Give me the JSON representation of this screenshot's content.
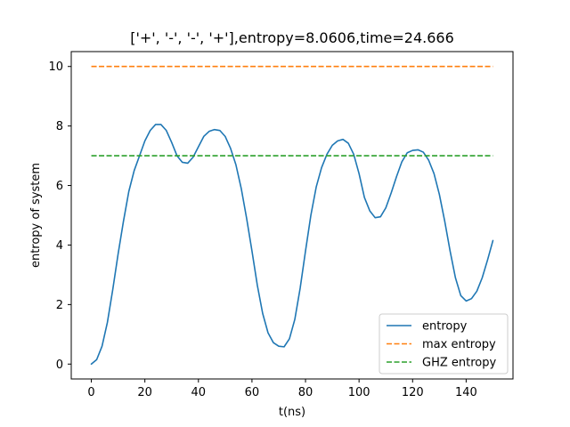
{
  "chart_data": {
    "type": "line",
    "title": "['+', '-', '-', '+'],entropy=8.0606,time=24.666",
    "xlabel": "t(ns)",
    "ylabel": "entropy of system",
    "xlim": [
      -7.5,
      157.5
    ],
    "ylim": [
      -0.5,
      10.5
    ],
    "xticks": [
      0,
      20,
      40,
      60,
      80,
      100,
      120,
      140
    ],
    "yticks": [
      0,
      2,
      4,
      6,
      8,
      10
    ],
    "grid": false,
    "legend_position": "lower-right",
    "series": [
      {
        "name": "entropy",
        "color": "#1f77b4",
        "style": "solid",
        "points": [
          [
            0,
            0.0
          ],
          [
            2,
            0.15
          ],
          [
            4,
            0.6
          ],
          [
            6,
            1.4
          ],
          [
            8,
            2.5
          ],
          [
            10,
            3.7
          ],
          [
            12,
            4.8
          ],
          [
            14,
            5.8
          ],
          [
            16,
            6.5
          ],
          [
            18,
            7.0
          ],
          [
            20,
            7.5
          ],
          [
            22,
            7.85
          ],
          [
            24,
            8.05
          ],
          [
            26,
            8.05
          ],
          [
            28,
            7.85
          ],
          [
            30,
            7.45
          ],
          [
            32,
            7.0
          ],
          [
            34,
            6.78
          ],
          [
            36,
            6.75
          ],
          [
            38,
            6.95
          ],
          [
            40,
            7.3
          ],
          [
            42,
            7.65
          ],
          [
            44,
            7.82
          ],
          [
            46,
            7.88
          ],
          [
            48,
            7.85
          ],
          [
            50,
            7.65
          ],
          [
            52,
            7.25
          ],
          [
            54,
            6.7
          ],
          [
            56,
            5.9
          ],
          [
            58,
            4.9
          ],
          [
            60,
            3.8
          ],
          [
            62,
            2.65
          ],
          [
            64,
            1.7
          ],
          [
            66,
            1.05
          ],
          [
            68,
            0.72
          ],
          [
            70,
            0.6
          ],
          [
            72,
            0.58
          ],
          [
            74,
            0.85
          ],
          [
            76,
            1.5
          ],
          [
            78,
            2.55
          ],
          [
            80,
            3.8
          ],
          [
            82,
            5.0
          ],
          [
            84,
            5.95
          ],
          [
            86,
            6.6
          ],
          [
            88,
            7.05
          ],
          [
            90,
            7.35
          ],
          [
            92,
            7.5
          ],
          [
            94,
            7.55
          ],
          [
            96,
            7.42
          ],
          [
            98,
            7.05
          ],
          [
            100,
            6.4
          ],
          [
            102,
            5.6
          ],
          [
            104,
            5.15
          ],
          [
            106,
            4.92
          ],
          [
            108,
            4.95
          ],
          [
            110,
            5.25
          ],
          [
            112,
            5.75
          ],
          [
            114,
            6.3
          ],
          [
            116,
            6.8
          ],
          [
            118,
            7.1
          ],
          [
            120,
            7.18
          ],
          [
            122,
            7.2
          ],
          [
            124,
            7.12
          ],
          [
            126,
            6.85
          ],
          [
            128,
            6.4
          ],
          [
            130,
            5.7
          ],
          [
            132,
            4.8
          ],
          [
            134,
            3.8
          ],
          [
            136,
            2.9
          ],
          [
            138,
            2.3
          ],
          [
            140,
            2.12
          ],
          [
            142,
            2.2
          ],
          [
            144,
            2.45
          ],
          [
            146,
            2.9
          ],
          [
            148,
            3.5
          ],
          [
            150,
            4.15
          ]
        ]
      },
      {
        "name": "max entropy",
        "color": "#ff7f0e",
        "style": "dashed",
        "points": [
          [
            0,
            10
          ],
          [
            150,
            10
          ]
        ]
      },
      {
        "name": "GHZ entropy",
        "color": "#2ca02c",
        "style": "dashed",
        "points": [
          [
            0,
            7
          ],
          [
            150,
            7
          ]
        ]
      }
    ]
  }
}
